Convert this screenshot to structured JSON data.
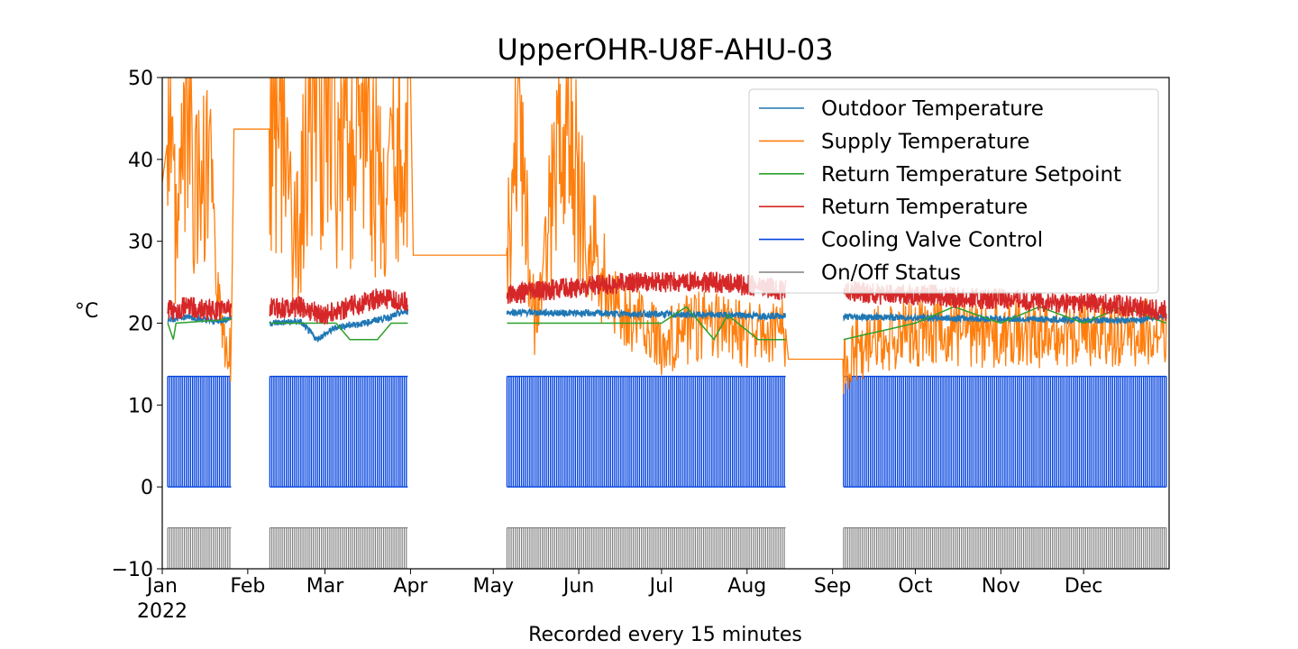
{
  "chart_data": {
    "type": "line",
    "title": "UpperOHR-U8F-AHU-03",
    "xlabel": "Recorded every 15 minutes",
    "ylabel": "°C",
    "ylim": [
      -10,
      50
    ],
    "yticks": [
      "−10",
      "0",
      "10",
      "20",
      "30",
      "40",
      "50"
    ],
    "xlim": [
      "2022-01-01",
      "2023-01-01"
    ],
    "xticks": [
      {
        "date": "2022-01-01",
        "label": "Jan",
        "sublabel": "2022"
      },
      {
        "date": "2022-02-01",
        "label": "Feb"
      },
      {
        "date": "2022-03-01",
        "label": "Mar"
      },
      {
        "date": "2022-04-01",
        "label": "Apr"
      },
      {
        "date": "2022-05-01",
        "label": "May"
      },
      {
        "date": "2022-06-01",
        "label": "Jun"
      },
      {
        "date": "2022-07-01",
        "label": "Jul"
      },
      {
        "date": "2022-08-01",
        "label": "Aug"
      },
      {
        "date": "2022-09-01",
        "label": "Sep"
      },
      {
        "date": "2022-10-01",
        "label": "Oct"
      },
      {
        "date": "2022-11-01",
        "label": "Nov"
      },
      {
        "date": "2022-12-01",
        "label": "Dec"
      }
    ],
    "grid": false,
    "legend_position": "top-right",
    "series": [
      {
        "name": "Outdoor Temperature",
        "color": "#1f77b4",
        "x": [
          "2022-01-03",
          "2022-01-10",
          "2022-01-20",
          "2022-01-26",
          "2022-02-09",
          "2022-02-20",
          "2022-02-26",
          "2022-03-05",
          "2022-03-15",
          "2022-03-25",
          "2022-03-31",
          "2022-12-20",
          "2022-12-31"
        ],
        "y": [
          20.5,
          20.8,
          20.2,
          20.6,
          20.0,
          20.2,
          18.0,
          19.5,
          20.0,
          20.8,
          21.5,
          20.3,
          21.0
        ]
      },
      {
        "name": "Supply Temperature",
        "color": "#ff7f0e",
        "x": [
          "2022-01-01",
          "2022-01-04",
          "2022-01-06",
          "2022-01-10",
          "2022-01-14",
          "2022-01-18",
          "2022-01-22",
          "2022-01-26",
          "2022-01-27",
          "2022-02-09",
          "2022-02-12",
          "2022-02-18",
          "2022-02-26",
          "2022-03-05",
          "2022-03-15",
          "2022-03-24",
          "2022-03-31",
          "2022-04-01",
          "2022-04-02",
          "2022-05-06",
          "2022-05-10",
          "2022-05-16",
          "2022-05-27",
          "2022-06-05",
          "2022-06-15",
          "2022-07-01",
          "2022-07-15",
          "2022-08-01",
          "2022-08-15",
          "2022-08-16",
          "2022-09-05",
          "2022-09-15",
          "2022-10-01",
          "2022-11-01",
          "2022-12-01",
          "2022-12-31"
        ],
        "y": [
          37.2,
          45.0,
          30.0,
          48.0,
          35.0,
          38.0,
          20.0,
          17.0,
          43.7,
          43.7,
          48.0,
          30.0,
          50.0,
          40.0,
          45.0,
          35.0,
          50.0,
          50.0,
          28.3,
          28.3,
          45.0,
          20.0,
          46.0,
          30.0,
          22.0,
          18.0,
          20.0,
          19.0,
          19.0,
          15.6,
          15.6,
          18.0,
          19.0,
          19.0,
          19.0,
          19.0
        ]
      },
      {
        "name": "Return Temperature Setpoint",
        "color": "#2ca02c",
        "x": [
          "2022-01-03",
          "2022-01-05",
          "2022-01-06",
          "2022-01-27",
          "2022-02-09",
          "2022-03-05",
          "2022-03-10",
          "2022-03-20",
          "2022-03-25",
          "2022-03-31",
          "2022-05-06",
          "2022-05-20",
          "2022-06-10",
          "2022-07-01",
          "2022-07-10",
          "2022-07-20",
          "2022-07-25",
          "2022-08-05",
          "2022-08-15",
          "2022-09-05",
          "2022-10-01",
          "2022-10-15",
          "2022-11-01",
          "2022-11-15",
          "2022-12-01",
          "2022-12-15",
          "2022-12-31"
        ],
        "y": [
          20.0,
          18.0,
          20.0,
          20.5,
          20.0,
          20.0,
          18.0,
          18.0,
          20.0,
          20.0,
          20.0,
          20.0,
          20.0,
          20.0,
          22.0,
          18.0,
          21.0,
          18.0,
          18.0,
          18.0,
          20.0,
          22.0,
          20.0,
          22.0,
          20.0,
          22.0,
          20.0
        ]
      },
      {
        "name": "Return Temperature",
        "color": "#d62728",
        "x": [
          "2022-01-03",
          "2022-01-10",
          "2022-01-20",
          "2022-01-26",
          "2022-02-09",
          "2022-02-20",
          "2022-03-01",
          "2022-03-10",
          "2022-03-20",
          "2022-03-31",
          "2022-05-06",
          "2022-05-20",
          "2022-06-05",
          "2022-06-20",
          "2022-07-05",
          "2022-07-20",
          "2022-08-05",
          "2022-08-15",
          "2022-09-05",
          "2022-09-20",
          "2022-10-05",
          "2022-10-20",
          "2022-11-05",
          "2022-11-20",
          "2022-12-05",
          "2022-12-20",
          "2022-12-31"
        ],
        "y": [
          21.5,
          22.0,
          21.5,
          22.0,
          21.8,
          22.0,
          21.0,
          22.0,
          23.0,
          22.5,
          23.5,
          24.0,
          24.5,
          25.0,
          25.0,
          25.0,
          24.5,
          24.0,
          24.0,
          23.5,
          23.5,
          23.0,
          23.0,
          22.5,
          22.5,
          22.0,
          21.5
        ]
      },
      {
        "name": "Cooling Valve Control",
        "color": "#0343df",
        "x": [
          "2022-01-03",
          "2022-01-26",
          "2022-02-09",
          "2022-03-31",
          "2022-05-06",
          "2022-08-15",
          "2022-09-05",
          "2022-12-31"
        ],
        "y": [
          13.5,
          13.5,
          13.5,
          13.5,
          13.5,
          13.5,
          13.5,
          13.5
        ]
      },
      {
        "name": "On/Off Status",
        "color": "#808080",
        "x": [
          "2022-01-03",
          "2022-01-26",
          "2022-02-09",
          "2022-03-31",
          "2022-05-06",
          "2022-08-15",
          "2022-09-05",
          "2022-12-31"
        ],
        "y": [
          -5,
          -5,
          -5,
          -5,
          -5,
          -5,
          -5,
          -5
        ]
      }
    ],
    "segments": [
      [
        "2022-01-03",
        "2022-01-26"
      ],
      [
        "2022-02-09",
        "2022-03-31"
      ],
      [
        "2022-05-06",
        "2022-08-15"
      ],
      [
        "2022-09-05",
        "2022-12-31"
      ]
    ],
    "cooling_valve_range": [
      0,
      13.5
    ],
    "onoff_range": [
      -10,
      -5
    ]
  }
}
